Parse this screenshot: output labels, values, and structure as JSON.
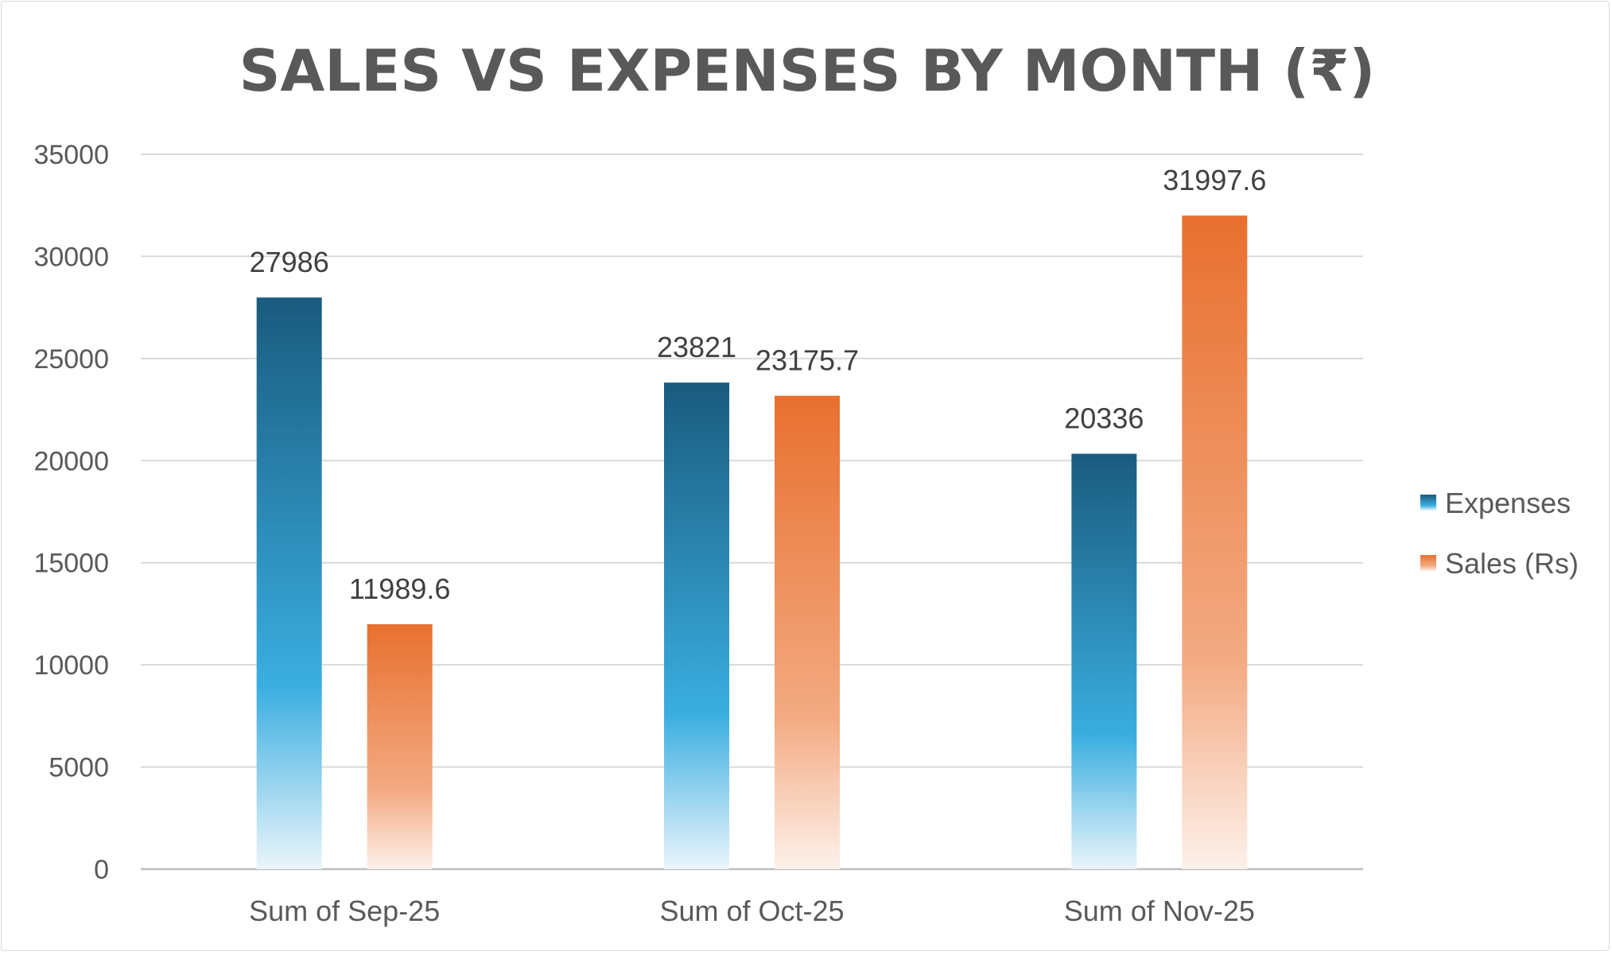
{
  "chart_data": {
    "type": "bar",
    "title": "SALES VS EXPENSES BY MONTH (₹)",
    "categories": [
      "Sum of Sep-25",
      "Sum of Oct-25",
      "Sum of Nov-25"
    ],
    "series": [
      {
        "name": "Expenses",
        "values": [
          27986,
          23821,
          20336
        ],
        "labels": [
          "27986",
          "23821",
          "20336"
        ],
        "color_top": "#1a5b7e",
        "color_mid": "#3aaee0",
        "color_bottom": "#eaf5fb"
      },
      {
        "name": "Sales (Rs)",
        "values": [
          11989.6,
          23175.7,
          31997.6
        ],
        "labels": [
          "11989.6",
          "23175.7",
          "31997.6"
        ],
        "color_top": "#e8702f",
        "color_mid": "#f3aa82",
        "color_bottom": "#fdf1ea"
      }
    ],
    "ylim": [
      0,
      35000
    ],
    "yticks": [
      "0",
      "5000",
      "10000",
      "15000",
      "20000",
      "25000",
      "30000",
      "35000"
    ],
    "ytick_values": [
      0,
      5000,
      10000,
      15000,
      20000,
      25000,
      30000,
      35000
    ],
    "grid": true,
    "legend_position": "right",
    "xlabel": "",
    "ylabel": ""
  }
}
